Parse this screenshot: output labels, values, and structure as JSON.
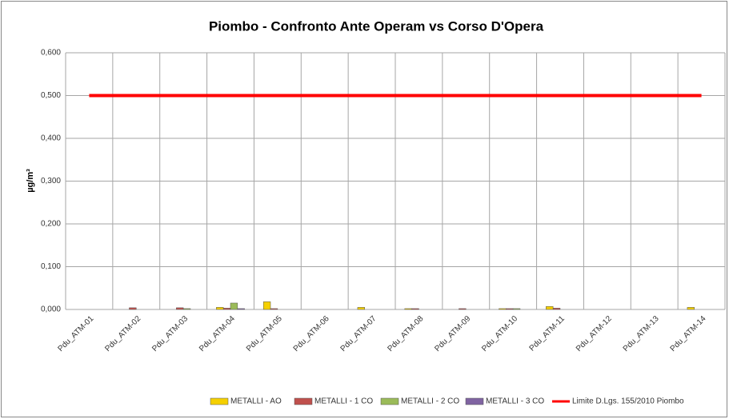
{
  "chart_data": {
    "type": "bar",
    "title": "Piombo - Confronto Ante Operam vs Corso D'Opera",
    "y_label": "µg/m³",
    "categories": [
      "Pdu_ATM-01",
      "Pdu_ATM-02",
      "Pdu_ATM-03",
      "Pdu_ATM-04",
      "Pdu_ATM-05",
      "Pdu_ATM-06",
      "Pdu_ATM-07",
      "Pdu_ATM-08",
      "Pdu_ATM-09",
      "Pdu_ATM-10",
      "Pdu_ATM-11",
      "Pdu_ATM-12",
      "Pdu_ATM-13",
      "Pdu_ATM-14"
    ],
    "series": [
      {
        "name": "METALLI - AO",
        "type": "bar",
        "color": "#f5d000",
        "values": [
          0,
          0,
          0,
          0.005,
          0.018,
          0,
          0.005,
          0.002,
          0,
          0.002,
          0.007,
          0,
          0,
          0.005
        ]
      },
      {
        "name": "METALLI -  1 CO",
        "type": "bar",
        "color": "#c0504d",
        "values": [
          0,
          0.004,
          0.004,
          0.003,
          0.002,
          0,
          0,
          0.002,
          0.002,
          0.002,
          0.003,
          0,
          0,
          0
        ]
      },
      {
        "name": "METALLI - 2 CO",
        "type": "bar",
        "color": "#9bbb59",
        "values": [
          0,
          0,
          0.002,
          0.015,
          0,
          0,
          0,
          0,
          0,
          0.002,
          0,
          0,
          0,
          0
        ]
      },
      {
        "name": "METALLI - 3 CO",
        "type": "bar",
        "color": "#8064a2",
        "values": [
          0,
          0,
          0,
          0.002,
          0,
          0,
          0,
          0,
          0,
          0,
          0,
          0,
          0,
          0
        ]
      },
      {
        "name": "Limite D.Lgs. 155/2010 Piombo",
        "type": "line",
        "color": "#ff0000",
        "values": [
          0.5,
          0.5,
          0.5,
          0.5,
          0.5,
          0.5,
          0.5,
          0.5,
          0.5,
          0.5,
          0.5,
          0.5,
          0.5,
          0.5
        ]
      }
    ],
    "ylim": [
      0,
      0.6
    ],
    "yticks": [
      {
        "value": 0,
        "label": "0,000"
      },
      {
        "value": 0.1,
        "label": "0,100"
      },
      {
        "value": 0.2,
        "label": "0,200"
      },
      {
        "value": 0.3,
        "label": "0,300"
      },
      {
        "value": 0.4,
        "label": "0,400"
      },
      {
        "value": 0.5,
        "label": "0,500"
      },
      {
        "value": 0.6,
        "label": "0,600"
      }
    ],
    "grid": true,
    "legend": "bottom"
  }
}
